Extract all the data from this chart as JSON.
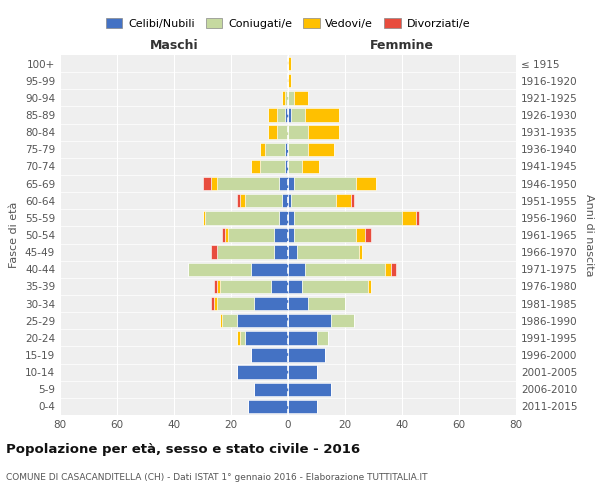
{
  "age_groups": [
    "0-4",
    "5-9",
    "10-14",
    "15-19",
    "20-24",
    "25-29",
    "30-34",
    "35-39",
    "40-44",
    "45-49",
    "50-54",
    "55-59",
    "60-64",
    "65-69",
    "70-74",
    "75-79",
    "80-84",
    "85-89",
    "90-94",
    "95-99",
    "100+"
  ],
  "birth_years": [
    "2011-2015",
    "2006-2010",
    "2001-2005",
    "1996-2000",
    "1991-1995",
    "1986-1990",
    "1981-1985",
    "1976-1980",
    "1971-1975",
    "1966-1970",
    "1961-1965",
    "1956-1960",
    "1951-1955",
    "1946-1950",
    "1941-1945",
    "1936-1940",
    "1931-1935",
    "1926-1930",
    "1921-1925",
    "1916-1920",
    "≤ 1915"
  ],
  "maschi": {
    "celibi": [
      14,
      12,
      18,
      13,
      15,
      18,
      12,
      6,
      13,
      5,
      5,
      3,
      2,
      3,
      1,
      1,
      0,
      1,
      0,
      0,
      0
    ],
    "coniugati": [
      0,
      0,
      0,
      0,
      2,
      5,
      13,
      18,
      22,
      20,
      16,
      26,
      13,
      22,
      9,
      7,
      4,
      3,
      1,
      0,
      0
    ],
    "vedovi": [
      0,
      0,
      0,
      0,
      1,
      1,
      1,
      1,
      0,
      0,
      1,
      1,
      2,
      2,
      3,
      2,
      3,
      3,
      1,
      0,
      0
    ],
    "divorziati": [
      0,
      0,
      0,
      0,
      0,
      0,
      1,
      1,
      0,
      2,
      1,
      0,
      1,
      3,
      0,
      0,
      0,
      0,
      0,
      0,
      0
    ]
  },
  "femmine": {
    "nubili": [
      10,
      15,
      10,
      13,
      10,
      15,
      7,
      5,
      6,
      3,
      2,
      2,
      1,
      2,
      0,
      0,
      0,
      1,
      0,
      0,
      0
    ],
    "coniugate": [
      0,
      0,
      0,
      0,
      4,
      8,
      13,
      23,
      28,
      22,
      22,
      38,
      16,
      22,
      5,
      7,
      7,
      5,
      2,
      0,
      0
    ],
    "vedove": [
      0,
      0,
      0,
      0,
      0,
      0,
      0,
      1,
      2,
      1,
      3,
      5,
      5,
      7,
      6,
      9,
      11,
      12,
      5,
      1,
      1
    ],
    "divorziate": [
      0,
      0,
      0,
      0,
      0,
      0,
      0,
      0,
      2,
      0,
      2,
      1,
      1,
      0,
      0,
      0,
      0,
      0,
      0,
      0,
      0
    ]
  },
  "colors": {
    "celibi": "#4472c4",
    "coniugati": "#c6d9a0",
    "vedovi": "#ffc000",
    "divorziati": "#e84c3d"
  },
  "xlim": 80,
  "title": "Popolazione per età, sesso e stato civile - 2016",
  "subtitle": "COMUNE DI CASACANDITELLA (CH) - Dati ISTAT 1° gennaio 2016 - Elaborazione TUTTITALIA.IT",
  "ylabel_left": "Fasce di età",
  "ylabel_right": "Anni di nascita",
  "xlabel_maschi": "Maschi",
  "xlabel_femmine": "Femmine",
  "legend_labels": [
    "Celibi/Nubili",
    "Coniugati/e",
    "Vedovi/e",
    "Divorziati/e"
  ],
  "background_color": "#ffffff",
  "plot_bg_color": "#efefef",
  "grid_color": "#cccccc"
}
